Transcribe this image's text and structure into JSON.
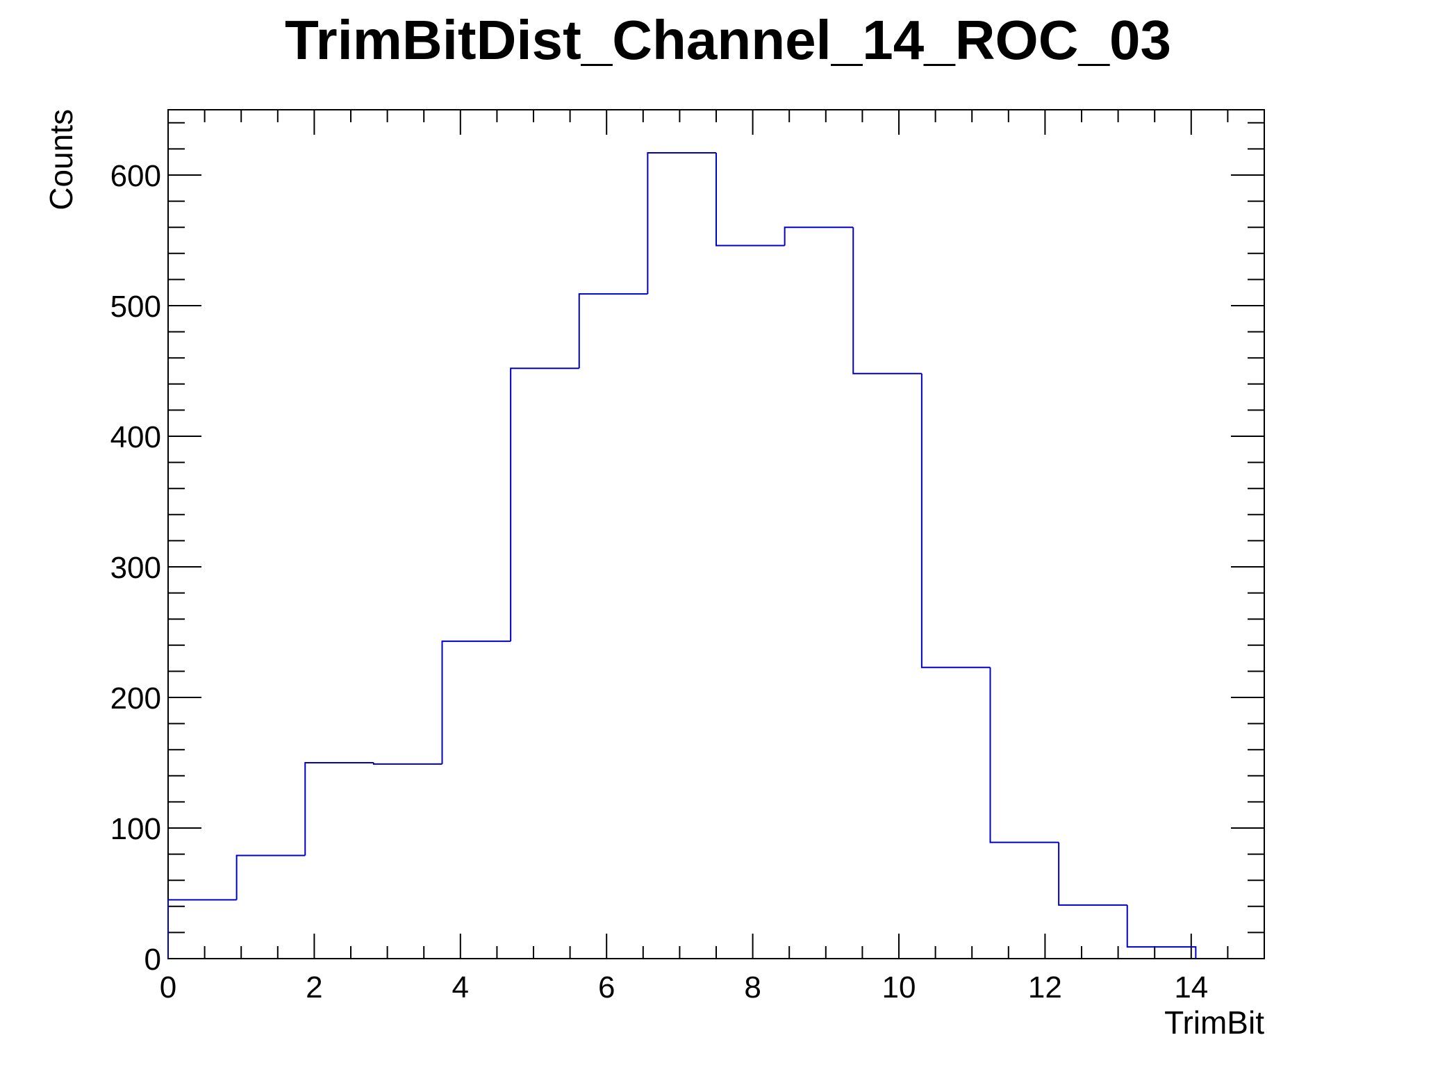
{
  "chart_data": {
    "type": "bar",
    "title": "TrimBitDist_Channel_14_ROC_03",
    "xlabel": "TrimBit",
    "ylabel": "Counts",
    "xlim": [
      0,
      15
    ],
    "ylim": [
      0,
      650
    ],
    "bin_width": 0.9375,
    "bins": [
      {
        "x_low": 0.0,
        "x_high": 0.9375,
        "value": 45
      },
      {
        "x_low": 0.9375,
        "x_high": 1.875,
        "value": 79
      },
      {
        "x_low": 1.875,
        "x_high": 2.8125,
        "value": 150
      },
      {
        "x_low": 2.8125,
        "x_high": 3.75,
        "value": 149
      },
      {
        "x_low": 3.75,
        "x_high": 4.6875,
        "value": 243
      },
      {
        "x_low": 4.6875,
        "x_high": 5.625,
        "value": 452
      },
      {
        "x_low": 5.625,
        "x_high": 6.5625,
        "value": 509
      },
      {
        "x_low": 6.5625,
        "x_high": 7.5,
        "value": 617
      },
      {
        "x_low": 7.5,
        "x_high": 8.4375,
        "value": 546
      },
      {
        "x_low": 8.4375,
        "x_high": 9.375,
        "value": 560
      },
      {
        "x_low": 9.375,
        "x_high": 10.3125,
        "value": 448
      },
      {
        "x_low": 10.3125,
        "x_high": 11.25,
        "value": 223
      },
      {
        "x_low": 11.25,
        "x_high": 12.1875,
        "value": 89
      },
      {
        "x_low": 12.1875,
        "x_high": 13.125,
        "value": 41
      },
      {
        "x_low": 13.125,
        "x_high": 14.0625,
        "value": 9
      }
    ],
    "x_ticks": [
      0,
      2,
      4,
      6,
      8,
      10,
      12,
      14
    ],
    "y_ticks": [
      0,
      100,
      200,
      300,
      400,
      500,
      600
    ],
    "x_tick_labels": [
      "0",
      "2",
      "4",
      "6",
      "8",
      "10",
      "12",
      "14"
    ],
    "y_tick_labels": [
      "0",
      "100",
      "200",
      "300",
      "400",
      "500",
      "600"
    ],
    "line_color": "#0000cc",
    "grid": false,
    "legend": "none"
  }
}
